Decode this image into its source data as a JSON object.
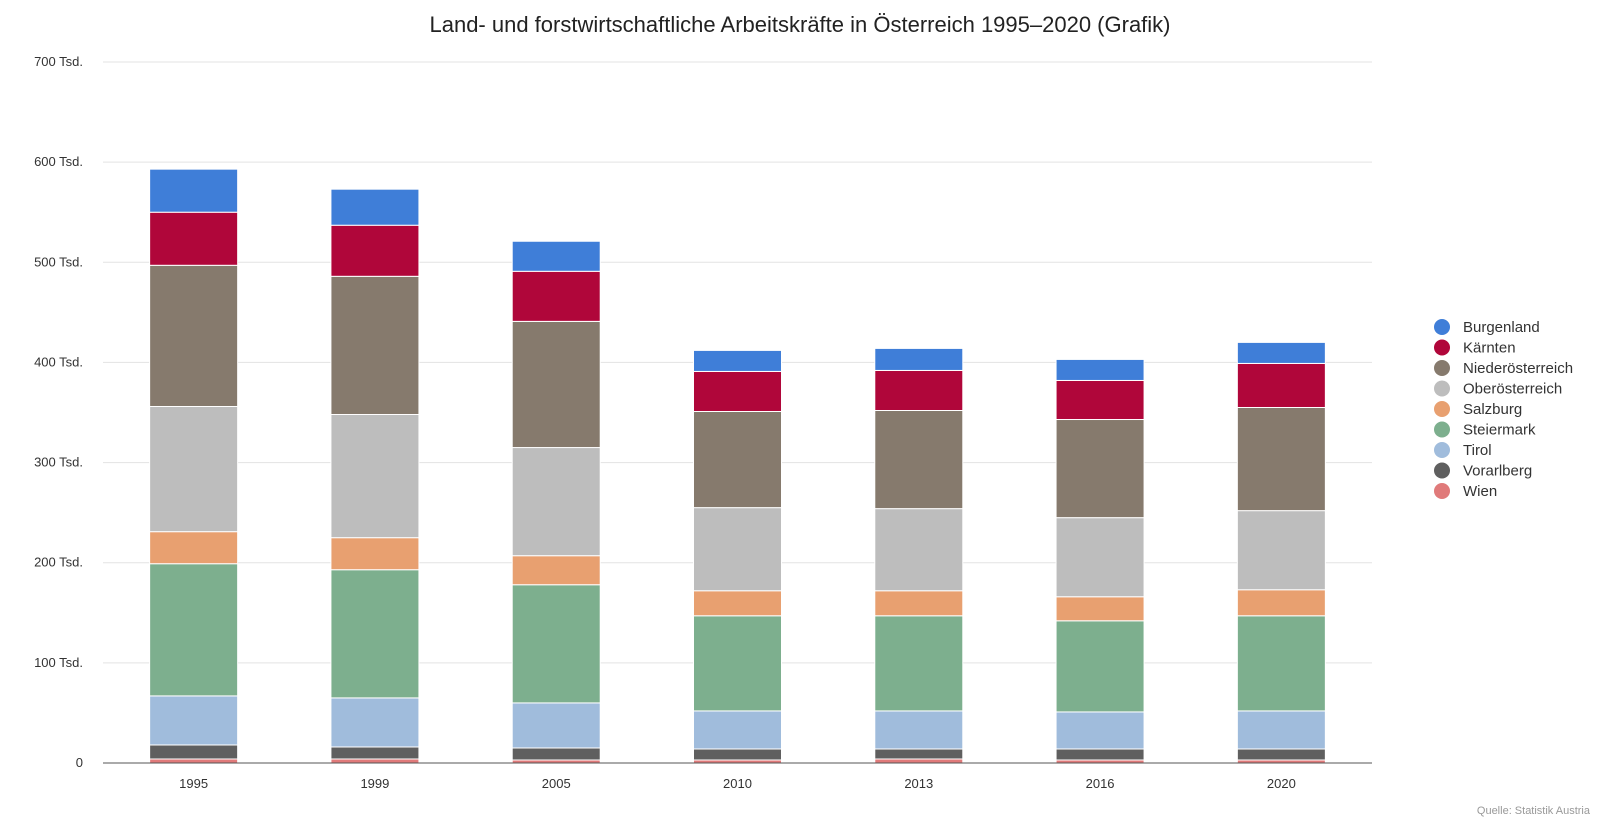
{
  "chart_data": {
    "type": "bar",
    "stacked": true,
    "title": "Land- und forstwirtschaftliche Arbeitskräfte in Österreich 1995–2020 (Grafik)",
    "source": "Quelle: Statistik Austria",
    "categories": [
      "1995",
      "1999",
      "2005",
      "2010",
      "2013",
      "2016",
      "2020"
    ],
    "ylim": [
      0,
      700
    ],
    "y_ticks": [
      {
        "value": 0,
        "label": "0"
      },
      {
        "value": 100,
        "label": "100 Tsd."
      },
      {
        "value": 200,
        "label": "200 Tsd."
      },
      {
        "value": 300,
        "label": "300 Tsd."
      },
      {
        "value": 400,
        "label": "400 Tsd."
      },
      {
        "value": 500,
        "label": "500 Tsd."
      },
      {
        "value": 600,
        "label": "600 Tsd."
      },
      {
        "value": 700,
        "label": "700 Tsd."
      }
    ],
    "grid": true,
    "legend_position": "right",
    "series": [
      {
        "name": "Wien",
        "color": "#e07a7a",
        "values": [
          4,
          4,
          3,
          3,
          4,
          3,
          3
        ]
      },
      {
        "name": "Vorarlberg",
        "color": "#5f5f5f",
        "values": [
          14,
          12,
          12,
          11,
          10,
          11,
          11
        ]
      },
      {
        "name": "Tirol",
        "color": "#a0bcdc",
        "values": [
          49,
          49,
          45,
          38,
          38,
          37,
          38
        ]
      },
      {
        "name": "Steiermark",
        "color": "#7daf8e",
        "values": [
          132,
          128,
          118,
          95,
          95,
          91,
          95
        ]
      },
      {
        "name": "Salzburg",
        "color": "#e8a070",
        "values": [
          32,
          32,
          29,
          25,
          25,
          24,
          26
        ]
      },
      {
        "name": "Oberösterreich",
        "color": "#bdbdbd",
        "values": [
          125,
          123,
          108,
          83,
          82,
          79,
          79
        ]
      },
      {
        "name": "Niederösterreich",
        "color": "#867a6d",
        "values": [
          141,
          138,
          126,
          96,
          98,
          98,
          103
        ]
      },
      {
        "name": "Kärnten",
        "color": "#b0063a",
        "values": [
          53,
          51,
          50,
          40,
          40,
          39,
          44
        ]
      },
      {
        "name": "Burgenland",
        "color": "#3f7ed8",
        "values": [
          43,
          36,
          30,
          21,
          22,
          21,
          21
        ]
      }
    ]
  }
}
